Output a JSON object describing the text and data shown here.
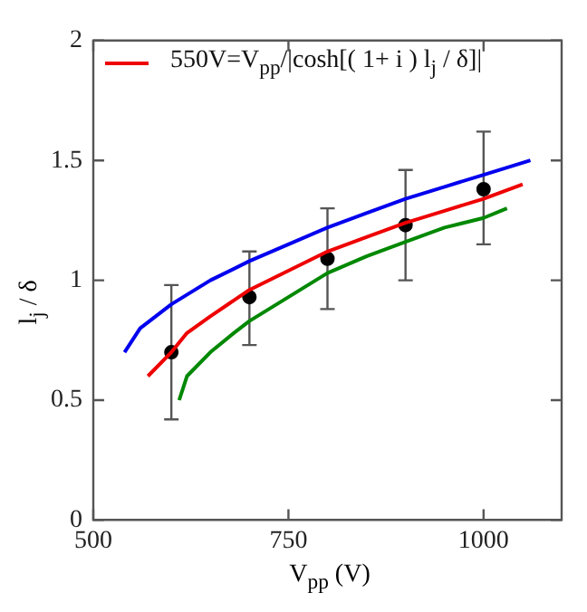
{
  "chart_data": {
    "type": "line",
    "xlabel": "V$_{pp}$ (V)",
    "ylabel": "l$_{j}$ / δ",
    "xlim": [
      500,
      1100
    ],
    "xticks": [
      500,
      750,
      1000
    ],
    "ylim": [
      0,
      2
    ],
    "yticks": [
      0,
      0.5,
      1,
      1.5,
      2
    ],
    "legend": "top left",
    "grid": false,
    "marker": "none",
    "line_style": "solid",
    "series": [
      {
        "color": "#0000ee",
        "x": [
          540,
          560,
          600,
          650,
          700,
          750,
          800,
          850,
          900,
          950,
          1000,
          1060
        ],
        "values": [
          0.7,
          0.8,
          0.9,
          1.0,
          1.08,
          1.15,
          1.22,
          1.28,
          1.34,
          1.39,
          1.44,
          1.5
        ]
      },
      {
        "name": "550V=V$_{pp}$/|cosh[( 1+ i ) l$_{j}$ / δ]|",
        "color": "#ee0000",
        "x": [
          570,
          600,
          620,
          650,
          700,
          750,
          800,
          850,
          900,
          950,
          1000,
          1050
        ],
        "values": [
          0.6,
          0.7,
          0.78,
          0.85,
          0.96,
          1.04,
          1.12,
          1.18,
          1.24,
          1.29,
          1.34,
          1.4
        ]
      },
      {
        "color": "#008800",
        "x": [
          610,
          620,
          650,
          680,
          700,
          750,
          800,
          850,
          900,
          950,
          1000,
          1030
        ],
        "values": [
          0.5,
          0.6,
          0.7,
          0.78,
          0.83,
          0.93,
          1.03,
          1.1,
          1.16,
          1.22,
          1.26,
          1.3
        ]
      },
      {
        "type": "scatter",
        "marker": "circle",
        "color": "#000000",
        "x": [
          600,
          700,
          800,
          900,
          1000
        ],
        "values": [
          0.7,
          0.93,
          1.09,
          1.23,
          1.38
        ],
        "errors": [
          [
            0.42,
            0.98
          ],
          [
            0.73,
            1.12
          ],
          [
            0.88,
            1.3
          ],
          [
            1.0,
            1.46
          ],
          [
            1.15,
            1.62
          ]
        ]
      }
    ]
  }
}
